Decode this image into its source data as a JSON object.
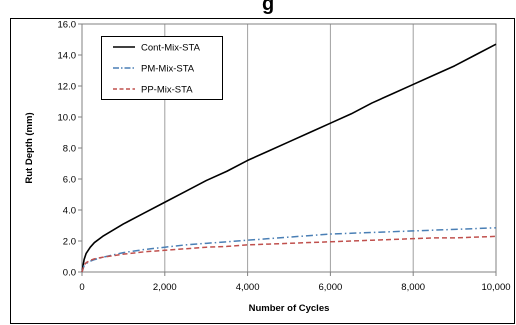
{
  "title_fragment": "g",
  "chart_data": {
    "type": "line",
    "title": "",
    "xlabel": "Number of Cycles",
    "ylabel": "Rut Depth (mm)",
    "xlim": [
      0,
      10000
    ],
    "ylim": [
      0,
      16
    ],
    "x_ticks": [
      0,
      2000,
      4000,
      6000,
      8000,
      10000
    ],
    "x_tick_labels": [
      "0",
      "2,000",
      "4,000",
      "6,000",
      "8,000",
      "10,000"
    ],
    "y_ticks": [
      0,
      2,
      4,
      6,
      8,
      10,
      12,
      14,
      16
    ],
    "y_tick_labels": [
      "0.0",
      "2.0",
      "4.0",
      "6.0",
      "8.0",
      "10.0",
      "12.0",
      "14.0",
      "16.0"
    ],
    "grid": "vertical",
    "legend_position": "top-left",
    "series": [
      {
        "name": "Cont-Mix-STA",
        "color": "#000000",
        "dash": "solid",
        "x": [
          0,
          50,
          100,
          200,
          300,
          500,
          1000,
          1500,
          2000,
          2500,
          3000,
          3500,
          4000,
          4500,
          5000,
          5500,
          6000,
          6500,
          7000,
          7500,
          8000,
          8500,
          9000,
          9500,
          10000
        ],
        "y": [
          0,
          0.8,
          1.2,
          1.6,
          1.9,
          2.3,
          3.1,
          3.8,
          4.5,
          5.2,
          5.9,
          6.5,
          7.2,
          7.8,
          8.4,
          9.0,
          9.6,
          10.2,
          10.9,
          11.5,
          12.1,
          12.7,
          13.3,
          14.0,
          14.7
        ]
      },
      {
        "name": "PM-Mix-STA",
        "color": "#4a7fb5",
        "dash": "dash-dot",
        "x": [
          0,
          50,
          100,
          200,
          300,
          500,
          1000,
          1500,
          2000,
          2500,
          3000,
          3500,
          4000,
          4500,
          5000,
          5500,
          6000,
          6500,
          7000,
          7500,
          8000,
          8500,
          9000,
          9500,
          10000
        ],
        "y": [
          0,
          0.4,
          0.55,
          0.7,
          0.8,
          0.95,
          1.25,
          1.45,
          1.6,
          1.75,
          1.85,
          1.95,
          2.05,
          2.15,
          2.25,
          2.35,
          2.45,
          2.5,
          2.55,
          2.6,
          2.65,
          2.7,
          2.75,
          2.8,
          2.85
        ]
      },
      {
        "name": "PP-Mix-STA",
        "color": "#c0504d",
        "dash": "dashed",
        "x": [
          0,
          50,
          100,
          200,
          300,
          500,
          1000,
          1500,
          2000,
          2500,
          3000,
          3500,
          4000,
          4500,
          5000,
          5500,
          6000,
          6500,
          7000,
          7500,
          8000,
          8500,
          9000,
          9500,
          10000
        ],
        "y": [
          0,
          0.45,
          0.6,
          0.75,
          0.85,
          0.95,
          1.15,
          1.3,
          1.4,
          1.5,
          1.6,
          1.65,
          1.75,
          1.8,
          1.85,
          1.9,
          1.95,
          2.0,
          2.05,
          2.1,
          2.15,
          2.2,
          2.2,
          2.25,
          2.3
        ]
      }
    ]
  }
}
